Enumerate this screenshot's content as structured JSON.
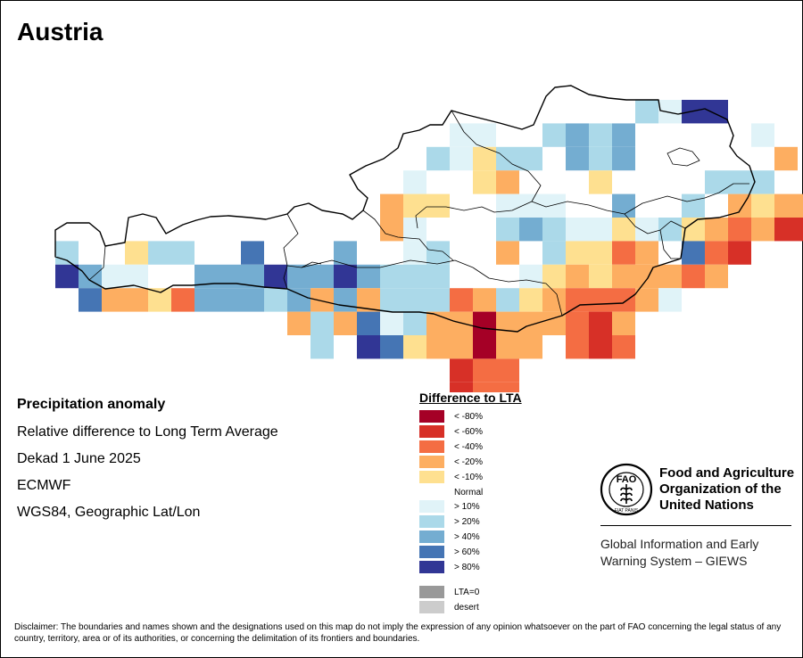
{
  "title": "Austria",
  "info": {
    "title": "Precipitation anomaly",
    "subtitle": "Relative difference to Long Term Average",
    "dekad": "Dekad 1 June 2025",
    "source": "ECMWF",
    "projection": "WGS84, Geographic Lat/Lon"
  },
  "legend": {
    "title": "Difference to LTA",
    "classes": [
      {
        "key": "n80",
        "label": "< -80%",
        "color": "#a50026"
      },
      {
        "key": "n60",
        "label": "< -60%",
        "color": "#d73027"
      },
      {
        "key": "n40",
        "label": "< -40%",
        "color": "#f46d43"
      },
      {
        "key": "n20",
        "label": "< -20%",
        "color": "#fdae61"
      },
      {
        "key": "n10",
        "label": "< -10%",
        "color": "#fee090"
      },
      {
        "key": "normal",
        "label": "Normal",
        "color": "#ffffff"
      },
      {
        "key": "p10",
        "label": "> 10%",
        "color": "#e0f3f8"
      },
      {
        "key": "p20",
        "label": "> 20%",
        "color": "#abd9e9"
      },
      {
        "key": "p40",
        "label": "> 40%",
        "color": "#74add1"
      },
      {
        "key": "p60",
        "label": "> 60%",
        "color": "#4575b4"
      },
      {
        "key": "p80",
        "label": "> 80%",
        "color": "#313695"
      }
    ],
    "extra": [
      {
        "key": "lta0",
        "label": "LTA=0",
        "color": "#999999"
      },
      {
        "key": "desert",
        "label": "desert",
        "color": "#cccccc"
      }
    ]
  },
  "fao": {
    "name_line1": "Food and Agriculture",
    "name_line2": "Organization of the",
    "name_line3": "United Nations",
    "logo_text": "FAO",
    "logo_motto": "FIAT PANIS",
    "giews_line1": "Global Information and Early",
    "giews_line2": "Warning System – GIEWS"
  },
  "disclaimer": "Disclaimer: The boundaries and names shown and the designations used on this map do not imply the expression of any opinion whatsoever on the part of FAO concerning the legal status of any country, territory, area or of its authorities, or concerning the delimitation of its frontiers and boundaries.",
  "map_data": {
    "grid_rows": [
      {
        "cells": [
          {
            "col": 27,
            "cls": "p20"
          },
          {
            "col": 28,
            "cls": "p10"
          },
          {
            "col": 29,
            "cls": "p80"
          },
          {
            "col": 30,
            "cls": "p80"
          }
        ]
      },
      {
        "cells": [
          {
            "col": 19,
            "cls": "p10"
          },
          {
            "col": 20,
            "cls": "p10"
          },
          {
            "col": 23,
            "cls": "p20"
          },
          {
            "col": 24,
            "cls": "p40"
          },
          {
            "col": 25,
            "cls": "p20"
          },
          {
            "col": 26,
            "cls": "p40"
          },
          {
            "col": 32,
            "cls": "p10"
          }
        ]
      },
      {
        "cells": [
          {
            "col": 18,
            "cls": "p20"
          },
          {
            "col": 19,
            "cls": "p10"
          },
          {
            "col": 20,
            "cls": "n10"
          },
          {
            "col": 21,
            "cls": "p20"
          },
          {
            "col": 22,
            "cls": "p20"
          },
          {
            "col": 24,
            "cls": "p40"
          },
          {
            "col": 25,
            "cls": "p20"
          },
          {
            "col": 26,
            "cls": "p40"
          },
          {
            "col": 33,
            "cls": "n20"
          }
        ]
      },
      {
        "cells": [
          {
            "col": 17,
            "cls": "p10"
          },
          {
            "col": 20,
            "cls": "n10"
          },
          {
            "col": 21,
            "cls": "n20"
          },
          {
            "col": 25,
            "cls": "n10"
          },
          {
            "col": 30,
            "cls": "p20"
          },
          {
            "col": 31,
            "cls": "p20"
          },
          {
            "col": 32,
            "cls": "p20"
          }
        ]
      },
      {
        "cells": [
          {
            "col": 16,
            "cls": "n20"
          },
          {
            "col": 17,
            "cls": "n10"
          },
          {
            "col": 18,
            "cls": "n10"
          },
          {
            "col": 21,
            "cls": "p10"
          },
          {
            "col": 22,
            "cls": "p10"
          },
          {
            "col": 23,
            "cls": "p10"
          },
          {
            "col": 26,
            "cls": "p40"
          },
          {
            "col": 29,
            "cls": "p20"
          },
          {
            "col": 31,
            "cls": "n20"
          },
          {
            "col": 32,
            "cls": "n10"
          },
          {
            "col": 33,
            "cls": "n20"
          },
          {
            "col": 34,
            "cls": "n20"
          }
        ]
      },
      {
        "cells": [
          {
            "col": 16,
            "cls": "n20"
          },
          {
            "col": 17,
            "cls": "p10"
          },
          {
            "col": 21,
            "cls": "p20"
          },
          {
            "col": 22,
            "cls": "p40"
          },
          {
            "col": 23,
            "cls": "p20"
          },
          {
            "col": 24,
            "cls": "p10"
          },
          {
            "col": 25,
            "cls": "p10"
          },
          {
            "col": 26,
            "cls": "n10"
          },
          {
            "col": 27,
            "cls": "p10"
          },
          {
            "col": 28,
            "cls": "p20"
          },
          {
            "col": 29,
            "cls": "n10"
          },
          {
            "col": 30,
            "cls": "n20"
          },
          {
            "col": 31,
            "cls": "n40"
          },
          {
            "col": 32,
            "cls": "n20"
          },
          {
            "col": 33,
            "cls": "n60"
          },
          {
            "col": 34,
            "cls": "n60"
          }
        ]
      },
      {
        "cells": [
          {
            "col": 2,
            "cls": "p20"
          },
          {
            "col": 5,
            "cls": "n10"
          },
          {
            "col": 6,
            "cls": "p20"
          },
          {
            "col": 7,
            "cls": "p20"
          },
          {
            "col": 10,
            "cls": "p60"
          },
          {
            "col": 14,
            "cls": "p40"
          },
          {
            "col": 17,
            "cls": "p10"
          },
          {
            "col": 18,
            "cls": "p20"
          },
          {
            "col": 21,
            "cls": "n20"
          },
          {
            "col": 23,
            "cls": "p20"
          },
          {
            "col": 24,
            "cls": "n10"
          },
          {
            "col": 25,
            "cls": "n10"
          },
          {
            "col": 26,
            "cls": "n40"
          },
          {
            "col": 27,
            "cls": "n20"
          },
          {
            "col": 29,
            "cls": "p60"
          },
          {
            "col": 30,
            "cls": "n40"
          },
          {
            "col": 31,
            "cls": "n60"
          }
        ]
      },
      {
        "cells": [
          {
            "col": 2,
            "cls": "p80"
          },
          {
            "col": 3,
            "cls": "p40"
          },
          {
            "col": 4,
            "cls": "p10"
          },
          {
            "col": 5,
            "cls": "p10"
          },
          {
            "col": 8,
            "cls": "p40"
          },
          {
            "col": 9,
            "cls": "p40"
          },
          {
            "col": 10,
            "cls": "p40"
          },
          {
            "col": 11,
            "cls": "p80"
          },
          {
            "col": 12,
            "cls": "p40"
          },
          {
            "col": 13,
            "cls": "p40"
          },
          {
            "col": 14,
            "cls": "p80"
          },
          {
            "col": 15,
            "cls": "p40"
          },
          {
            "col": 16,
            "cls": "p20"
          },
          {
            "col": 17,
            "cls": "p20"
          },
          {
            "col": 18,
            "cls": "p20"
          },
          {
            "col": 22,
            "cls": "p10"
          },
          {
            "col": 23,
            "cls": "n10"
          },
          {
            "col": 24,
            "cls": "n20"
          },
          {
            "col": 25,
            "cls": "n10"
          },
          {
            "col": 26,
            "cls": "n20"
          },
          {
            "col": 27,
            "cls": "n20"
          },
          {
            "col": 28,
            "cls": "n20"
          },
          {
            "col": 29,
            "cls": "n40"
          },
          {
            "col": 30,
            "cls": "n20"
          }
        ]
      },
      {
        "cells": [
          {
            "col": 3,
            "cls": "p60"
          },
          {
            "col": 4,
            "cls": "n20"
          },
          {
            "col": 5,
            "cls": "n20"
          },
          {
            "col": 6,
            "cls": "n10"
          },
          {
            "col": 7,
            "cls": "n40"
          },
          {
            "col": 8,
            "cls": "p40"
          },
          {
            "col": 9,
            "cls": "p40"
          },
          {
            "col": 10,
            "cls": "p40"
          },
          {
            "col": 11,
            "cls": "p20"
          },
          {
            "col": 12,
            "cls": "p40"
          },
          {
            "col": 13,
            "cls": "n20"
          },
          {
            "col": 14,
            "cls": "p40"
          },
          {
            "col": 15,
            "cls": "n20"
          },
          {
            "col": 16,
            "cls": "p20"
          },
          {
            "col": 17,
            "cls": "p20"
          },
          {
            "col": 18,
            "cls": "p20"
          },
          {
            "col": 19,
            "cls": "n40"
          },
          {
            "col": 20,
            "cls": "n20"
          },
          {
            "col": 21,
            "cls": "p20"
          },
          {
            "col": 22,
            "cls": "n10"
          },
          {
            "col": 23,
            "cls": "n20"
          },
          {
            "col": 24,
            "cls": "n40"
          },
          {
            "col": 25,
            "cls": "n40"
          },
          {
            "col": 26,
            "cls": "n40"
          },
          {
            "col": 27,
            "cls": "n20"
          },
          {
            "col": 28,
            "cls": "p10"
          }
        ]
      },
      {
        "cells": [
          {
            "col": 12,
            "cls": "n20"
          },
          {
            "col": 13,
            "cls": "p20"
          },
          {
            "col": 14,
            "cls": "n20"
          },
          {
            "col": 15,
            "cls": "p60"
          },
          {
            "col": 16,
            "cls": "p10"
          },
          {
            "col": 17,
            "cls": "p20"
          },
          {
            "col": 18,
            "cls": "n20"
          },
          {
            "col": 19,
            "cls": "n20"
          },
          {
            "col": 20,
            "cls": "n80"
          },
          {
            "col": 21,
            "cls": "n20"
          },
          {
            "col": 22,
            "cls": "n20"
          },
          {
            "col": 23,
            "cls": "n20"
          },
          {
            "col": 24,
            "cls": "n40"
          },
          {
            "col": 25,
            "cls": "n60"
          },
          {
            "col": 26,
            "cls": "n20"
          }
        ]
      },
      {
        "cells": [
          {
            "col": 13,
            "cls": "p20"
          },
          {
            "col": 15,
            "cls": "p80"
          },
          {
            "col": 16,
            "cls": "p60"
          },
          {
            "col": 17,
            "cls": "n10"
          },
          {
            "col": 18,
            "cls": "n20"
          },
          {
            "col": 19,
            "cls": "n20"
          },
          {
            "col": 20,
            "cls": "n80"
          },
          {
            "col": 21,
            "cls": "n20"
          },
          {
            "col": 22,
            "cls": "n20"
          },
          {
            "col": 24,
            "cls": "n40"
          },
          {
            "col": 25,
            "cls": "n60"
          },
          {
            "col": 26,
            "cls": "n40"
          }
        ]
      },
      {
        "cells": [
          {
            "col": 19,
            "cls": "n60"
          },
          {
            "col": 20,
            "cls": "n40"
          },
          {
            "col": 21,
            "cls": "n40"
          }
        ]
      },
      {
        "cells": [
          {
            "col": 19,
            "cls": "n60"
          },
          {
            "col": 20,
            "cls": "n40"
          },
          {
            "col": 21,
            "cls": "n40"
          }
        ]
      }
    ]
  }
}
